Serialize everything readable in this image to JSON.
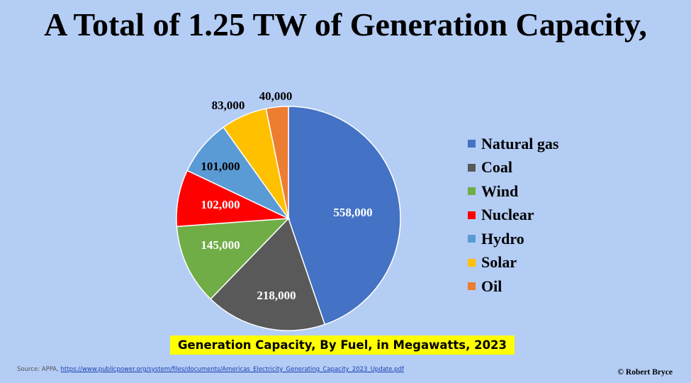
{
  "chart_data": {
    "type": "pie",
    "title": "A Total of 1.25 TW of Generation Capacity,",
    "subtitle": "Generation Capacity, By Fuel, in Megawatts, 2023",
    "legend_position": "right",
    "slices": [
      {
        "name": "Natural gas",
        "value": 558000,
        "label": "558,000",
        "color": "#4472c4",
        "label_color": "#ffffff"
      },
      {
        "name": "Coal",
        "value": 218000,
        "label": "218,000",
        "color": "#595959",
        "label_color": "#ffffff"
      },
      {
        "name": "Wind",
        "value": 145000,
        "label": "145,000",
        "color": "#70ad47",
        "label_color": "#ffffff"
      },
      {
        "name": "Nuclear",
        "value": 102000,
        "label": "102,000",
        "color": "#ff0000",
        "label_color": "#ffffff"
      },
      {
        "name": "Hydro",
        "value": 101000,
        "label": "101,000",
        "color": "#5b9bd5",
        "label_color": "#000000"
      },
      {
        "name": "Solar",
        "value": 83000,
        "label": "83,000",
        "color": "#ffc000",
        "label_color": "#000000"
      },
      {
        "name": "Oil",
        "value": 40000,
        "label": "40,000",
        "color": "#ed7d31",
        "label_color": "#000000"
      }
    ]
  },
  "source": {
    "prefix": "Source:  APPA, ",
    "link": "https://www.publicpower.org/system/files/documents/Americas_Electricity_Generating_Capacity_2023_Update.pdf"
  },
  "credit": "© Robert Bryce"
}
